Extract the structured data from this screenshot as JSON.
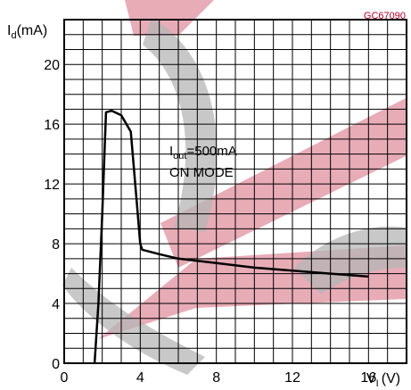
{
  "figure_code": "GC67090",
  "chart_data": {
    "type": "line",
    "xlabel": "V",
    "xlabel_sub": "I",
    "xlabel_unit": "(V)",
    "ylabel": "I",
    "ylabel_sub": "d",
    "ylabel_unit": "(mA)",
    "xlim": [
      0,
      18
    ],
    "ylim": [
      0,
      23
    ],
    "x_ticks": [
      0,
      4,
      8,
      12,
      16
    ],
    "y_ticks": [
      0,
      4,
      8,
      12,
      16,
      20
    ],
    "grid": true,
    "annotation": {
      "line1_main": "I",
      "line1_sub": "out",
      "line1_rest": "=500mA",
      "line2": "ON MODE"
    },
    "series": [
      {
        "color": "#000000",
        "x": [
          1.6,
          1.8,
          2.0,
          2.2,
          2.5,
          3.0,
          3.5,
          3.8,
          4.0,
          4.1,
          5,
          6,
          8,
          10,
          12,
          14,
          16
        ],
        "y": [
          0,
          4.0,
          10.0,
          16.8,
          16.9,
          16.6,
          15.5,
          11.0,
          8.0,
          7.6,
          7.3,
          7.0,
          6.7,
          6.4,
          6.2,
          6.0,
          5.8
        ]
      }
    ]
  },
  "watermark": {
    "colors": {
      "red": "#e0909f",
      "gray": "#b5b5b5"
    }
  }
}
